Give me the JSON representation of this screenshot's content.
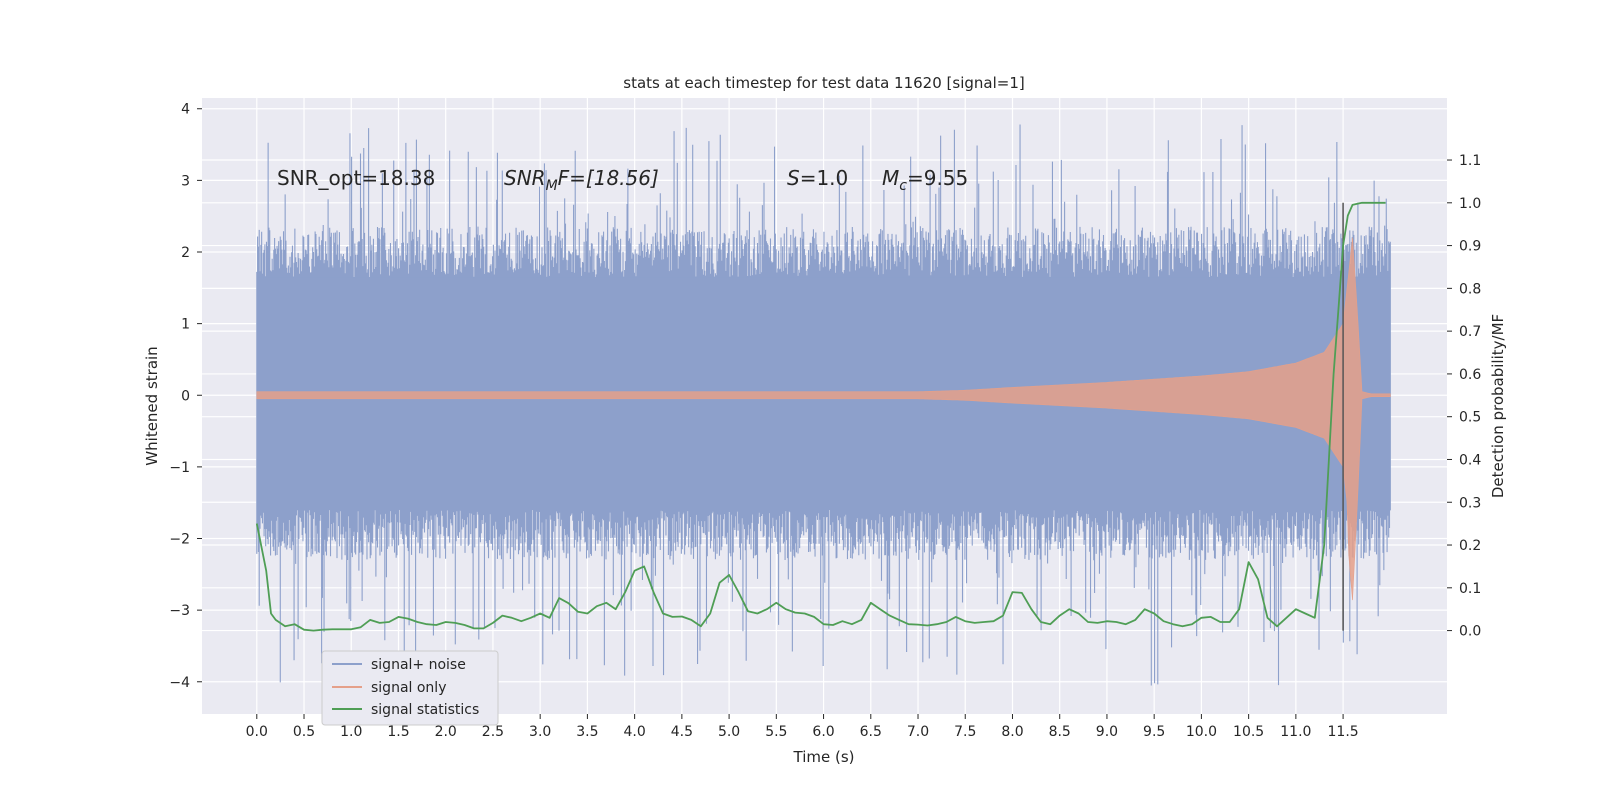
{
  "chart_data": {
    "type": "line",
    "title": "stats at each timestep for test data 11620 [signal=1]",
    "xlabel": "Time (s)",
    "ylabel_left": "Whitened strain",
    "ylabel_right": "Detection probability/MF",
    "xlim": [
      -0.58,
      12.6
    ],
    "ylim_left": [
      -4.45,
      4.15
    ],
    "ylim_right": [
      -0.195,
      1.245
    ],
    "x_ticks": [
      "0.0",
      "0.5",
      "1.0",
      "1.5",
      "2.0",
      "2.5",
      "3.0",
      "3.5",
      "4.0",
      "4.5",
      "5.0",
      "5.5",
      "6.0",
      "6.5",
      "7.0",
      "7.5",
      "8.0",
      "8.5",
      "9.0",
      "9.5",
      "10.0",
      "10.5",
      "11.0",
      "11.5"
    ],
    "y_left_ticks": [
      "4",
      "3",
      "2",
      "1",
      "0",
      "−1",
      "−2",
      "−3",
      "−4"
    ],
    "y_right_ticks": [
      "1.1",
      "1.0",
      "0.9",
      "0.8",
      "0.7",
      "0.6",
      "0.5",
      "0.4",
      "0.3",
      "0.2",
      "0.1",
      "0.0"
    ],
    "annotations": {
      "snr_opt": "SNR_opt=18.38",
      "snr_mf_name": "SNR",
      "snr_mf_sub": "M",
      "snr_mf_rest": "F=[18.56]",
      "s_name": "S",
      "s_rest": "=1.0",
      "mc_name": "M",
      "mc_sub": "c",
      "mc_rest": "=9.55"
    },
    "legend": {
      "position": "lower-left",
      "entries": [
        "signal+ noise",
        "signal only",
        "signal statistics"
      ]
    },
    "colors": {
      "noise": "#8da0cb",
      "signal": "#e5a08a",
      "stats": "#4f9e55",
      "marker": "#555555"
    },
    "series": [
      {
        "name": "signal+ noise",
        "note": "noise band approx envelope",
        "t_range": [
          0.0,
          12.0
        ],
        "band": [
          -1.6,
          1.65
        ],
        "peak_range": [
          -4.1,
          3.78
        ]
      },
      {
        "name": "signal only",
        "note": "chirp envelope amplitude (left axis units)",
        "t": [
          0.0,
          7.0,
          7.5,
          8.0,
          9.0,
          10.0,
          10.5,
          11.0,
          11.3,
          11.5,
          11.6,
          11.65,
          11.7,
          11.8,
          12.0
        ],
        "amp": [
          0.05,
          0.05,
          0.07,
          0.11,
          0.18,
          0.27,
          0.33,
          0.45,
          0.6,
          1.0,
          2.2,
          1.2,
          0.05,
          0.02,
          0.02
        ]
      },
      {
        "name": "signal statistics",
        "t": [
          0.0,
          0.1,
          0.15,
          0.2,
          0.3,
          0.4,
          0.5,
          0.6,
          0.7,
          0.8,
          0.9,
          1.0,
          1.1,
          1.2,
          1.3,
          1.4,
          1.5,
          1.6,
          1.7,
          1.8,
          1.9,
          2.0,
          2.1,
          2.2,
          2.3,
          2.4,
          2.5,
          2.6,
          2.7,
          2.8,
          2.9,
          3.0,
          3.1,
          3.2,
          3.3,
          3.4,
          3.5,
          3.6,
          3.7,
          3.8,
          3.9,
          4.0,
          4.1,
          4.2,
          4.3,
          4.4,
          4.5,
          4.6,
          4.7,
          4.8,
          4.9,
          5.0,
          5.1,
          5.2,
          5.3,
          5.4,
          5.5,
          5.6,
          5.7,
          5.8,
          5.9,
          6.0,
          6.1,
          6.2,
          6.3,
          6.4,
          6.5,
          6.6,
          6.7,
          6.8,
          6.9,
          7.0,
          7.1,
          7.2,
          7.3,
          7.4,
          7.5,
          7.6,
          7.7,
          7.8,
          7.9,
          8.0,
          8.1,
          8.2,
          8.3,
          8.4,
          8.5,
          8.6,
          8.7,
          8.8,
          8.9,
          9.0,
          9.1,
          9.2,
          9.3,
          9.4,
          9.5,
          9.6,
          9.7,
          9.8,
          9.9,
          10.0,
          10.1,
          10.2,
          10.3,
          10.4,
          10.5,
          10.6,
          10.7,
          10.8,
          10.9,
          11.0,
          11.1,
          11.2,
          11.3,
          11.35,
          11.4,
          11.45,
          11.5,
          11.55,
          11.6,
          11.65,
          11.7,
          11.8,
          11.9,
          11.95
        ],
        "values": [
          0.25,
          0.14,
          0.04,
          0.025,
          0.01,
          0.015,
          0.002,
          0.0,
          0.002,
          0.003,
          0.003,
          0.003,
          0.008,
          0.025,
          0.018,
          0.02,
          0.032,
          0.028,
          0.02,
          0.015,
          0.013,
          0.02,
          0.018,
          0.013,
          0.005,
          0.005,
          0.018,
          0.035,
          0.03,
          0.022,
          0.03,
          0.04,
          0.03,
          0.076,
          0.064,
          0.044,
          0.04,
          0.057,
          0.065,
          0.05,
          0.09,
          0.14,
          0.15,
          0.09,
          0.04,
          0.032,
          0.033,
          0.025,
          0.01,
          0.04,
          0.112,
          0.13,
          0.09,
          0.045,
          0.04,
          0.05,
          0.065,
          0.05,
          0.042,
          0.04,
          0.032,
          0.015,
          0.013,
          0.022,
          0.015,
          0.025,
          0.065,
          0.05,
          0.035,
          0.025,
          0.015,
          0.014,
          0.012,
          0.015,
          0.02,
          0.032,
          0.022,
          0.018,
          0.02,
          0.022,
          0.035,
          0.09,
          0.088,
          0.05,
          0.02,
          0.015,
          0.035,
          0.05,
          0.04,
          0.02,
          0.018,
          0.022,
          0.02,
          0.015,
          0.025,
          0.05,
          0.04,
          0.022,
          0.015,
          0.01,
          0.015,
          0.03,
          0.032,
          0.02,
          0.02,
          0.05,
          0.16,
          0.12,
          0.03,
          0.01,
          0.03,
          0.05,
          0.04,
          0.03,
          0.2,
          0.4,
          0.6,
          0.75,
          0.9,
          0.97,
          0.995,
          0.998,
          1.0,
          1.0,
          1.0,
          1.0
        ]
      }
    ],
    "vertical_line_x": 11.5
  }
}
